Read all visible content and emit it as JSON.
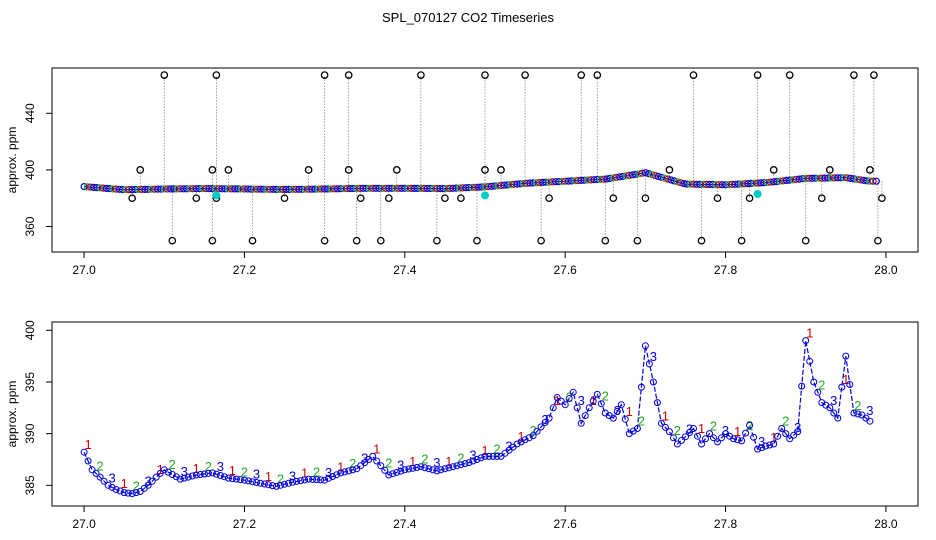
{
  "title": "SPL_070127  CO2 Timeseries",
  "colors": {
    "black": "#000000",
    "red": "#cc0000",
    "green": "#22aa22",
    "blue": "#0000dd",
    "cyan": "#00cccc",
    "grey": "#888888"
  },
  "chart_data": [
    {
      "type": "scatter",
      "panel": "top",
      "ylabel": "approx. ppm",
      "xlim": [
        26.96,
        28.04
      ],
      "ylim": [
        342,
        472
      ],
      "xticks": [
        "27.0",
        "27.2",
        "27.4",
        "27.6",
        "27.8",
        "28.0"
      ],
      "yticks": [
        "360",
        "400",
        "440"
      ],
      "baseline_points": [
        [
          27.0,
          388.2
        ],
        [
          27.05,
          386.0
        ],
        [
          27.1,
          386.5
        ],
        [
          27.15,
          386.8
        ],
        [
          27.2,
          386.5
        ],
        [
          27.25,
          386.2
        ],
        [
          27.3,
          386.5
        ],
        [
          27.35,
          387.0
        ],
        [
          27.4,
          387.0
        ],
        [
          27.45,
          386.8
        ],
        [
          27.5,
          388.0
        ],
        [
          27.55,
          390.5
        ],
        [
          27.6,
          392.0
        ],
        [
          27.65,
          393.5
        ],
        [
          27.7,
          398.0
        ],
        [
          27.75,
          390.0
        ],
        [
          27.8,
          389.5
        ],
        [
          27.85,
          391.0
        ],
        [
          27.9,
          394.0
        ],
        [
          27.95,
          394.5
        ],
        [
          27.98,
          392.0
        ]
      ],
      "spike_points": [
        [
          27.06,
          380
        ],
        [
          27.07,
          400
        ],
        [
          27.1,
          467
        ],
        [
          27.14,
          380
        ],
        [
          27.11,
          350
        ],
        [
          27.16,
          350
        ],
        [
          27.165,
          380
        ],
        [
          27.16,
          400
        ],
        [
          27.165,
          467
        ],
        [
          27.18,
          400
        ],
        [
          27.21,
          350
        ],
        [
          27.25,
          380
        ],
        [
          27.28,
          400
        ],
        [
          27.3,
          350
        ],
        [
          27.3,
          467
        ],
        [
          27.33,
          400
        ],
        [
          27.33,
          467
        ],
        [
          27.34,
          350
        ],
        [
          27.345,
          380
        ],
        [
          27.37,
          350
        ],
        [
          27.38,
          380
        ],
        [
          27.39,
          400
        ],
        [
          27.42,
          467
        ],
        [
          27.44,
          350
        ],
        [
          27.45,
          380
        ],
        [
          27.47,
          380
        ],
        [
          27.49,
          350
        ],
        [
          27.5,
          400
        ],
        [
          27.5,
          467
        ],
        [
          27.52,
          400
        ],
        [
          27.55,
          467
        ],
        [
          27.57,
          350
        ],
        [
          27.58,
          380
        ],
        [
          27.62,
          467
        ],
        [
          27.64,
          467
        ],
        [
          27.65,
          350
        ],
        [
          27.66,
          380
        ],
        [
          27.69,
          350
        ],
        [
          27.7,
          380
        ],
        [
          27.73,
          400
        ],
        [
          27.76,
          467
        ],
        [
          27.77,
          350
        ],
        [
          27.79,
          380
        ],
        [
          27.82,
          350
        ],
        [
          27.83,
          380
        ],
        [
          27.84,
          467
        ],
        [
          27.86,
          400
        ],
        [
          27.88,
          467
        ],
        [
          27.9,
          350
        ],
        [
          27.92,
          380
        ],
        [
          27.93,
          400
        ],
        [
          27.96,
          467
        ],
        [
          27.98,
          400
        ],
        [
          27.985,
          467
        ],
        [
          27.99,
          350
        ],
        [
          27.995,
          380
        ]
      ],
      "cyan_points": [
        [
          27.165,
          382
        ],
        [
          27.5,
          382
        ],
        [
          27.84,
          383
        ]
      ]
    },
    {
      "type": "line",
      "panel": "bottom",
      "ylabel": "approx. ppm",
      "xlim": [
        26.96,
        28.04
      ],
      "ylim": [
        383.0,
        400.8
      ],
      "xticks": [
        "27.0",
        "27.2",
        "27.4",
        "27.6",
        "27.8",
        "28.0"
      ],
      "yticks": [
        "385",
        "390",
        "395",
        "400"
      ],
      "series": [
        {
          "x": [
            27.0,
            27.01,
            27.02,
            27.03,
            27.04,
            27.05,
            27.06,
            27.07,
            27.08,
            27.09,
            27.1,
            27.12,
            27.14,
            27.16,
            27.18,
            27.2,
            27.22,
            27.24,
            27.26,
            27.28,
            27.3,
            27.32,
            27.34,
            27.36,
            27.38,
            27.4,
            27.42,
            27.44,
            27.46,
            27.48,
            27.5,
            27.52,
            27.54,
            27.56,
            27.58,
            27.59,
            27.6,
            27.61,
            27.62,
            27.63,
            27.64,
            27.65,
            27.66,
            27.67,
            27.68,
            27.69,
            27.7,
            27.71,
            27.72,
            27.73,
            27.74,
            27.75,
            27.76,
            27.77,
            27.78,
            27.79,
            27.8,
            27.81,
            27.82,
            27.83,
            27.84,
            27.85,
            27.86,
            27.87,
            27.88,
            27.89,
            27.9,
            27.91,
            27.92,
            27.93,
            27.94,
            27.95,
            27.96,
            27.97,
            27.98
          ],
          "values": [
            388.2,
            386.5,
            385.8,
            385.0,
            384.6,
            384.3,
            384.2,
            384.4,
            385.0,
            385.8,
            386.5,
            385.6,
            386.0,
            386.2,
            385.7,
            385.5,
            385.2,
            384.9,
            385.3,
            385.6,
            385.5,
            386.2,
            386.6,
            387.8,
            386.0,
            386.5,
            386.8,
            386.4,
            386.8,
            387.2,
            387.8,
            387.8,
            389.0,
            389.8,
            391.5,
            393.5,
            392.8,
            394.0,
            391.0,
            392.5,
            393.8,
            392.0,
            391.5,
            392.8,
            390.0,
            390.5,
            398.5,
            395.0,
            391.0,
            390.2,
            389.0,
            389.7,
            390.5,
            389.0,
            390.0,
            389.2,
            390.0,
            389.5,
            389.3,
            390.8,
            388.5,
            388.8,
            389.0,
            390.5,
            389.5,
            390.2,
            399.0,
            395.0,
            393.0,
            392.5,
            391.5,
            397.5,
            392.0,
            391.8,
            391.2
          ]
        }
      ]
    }
  ]
}
